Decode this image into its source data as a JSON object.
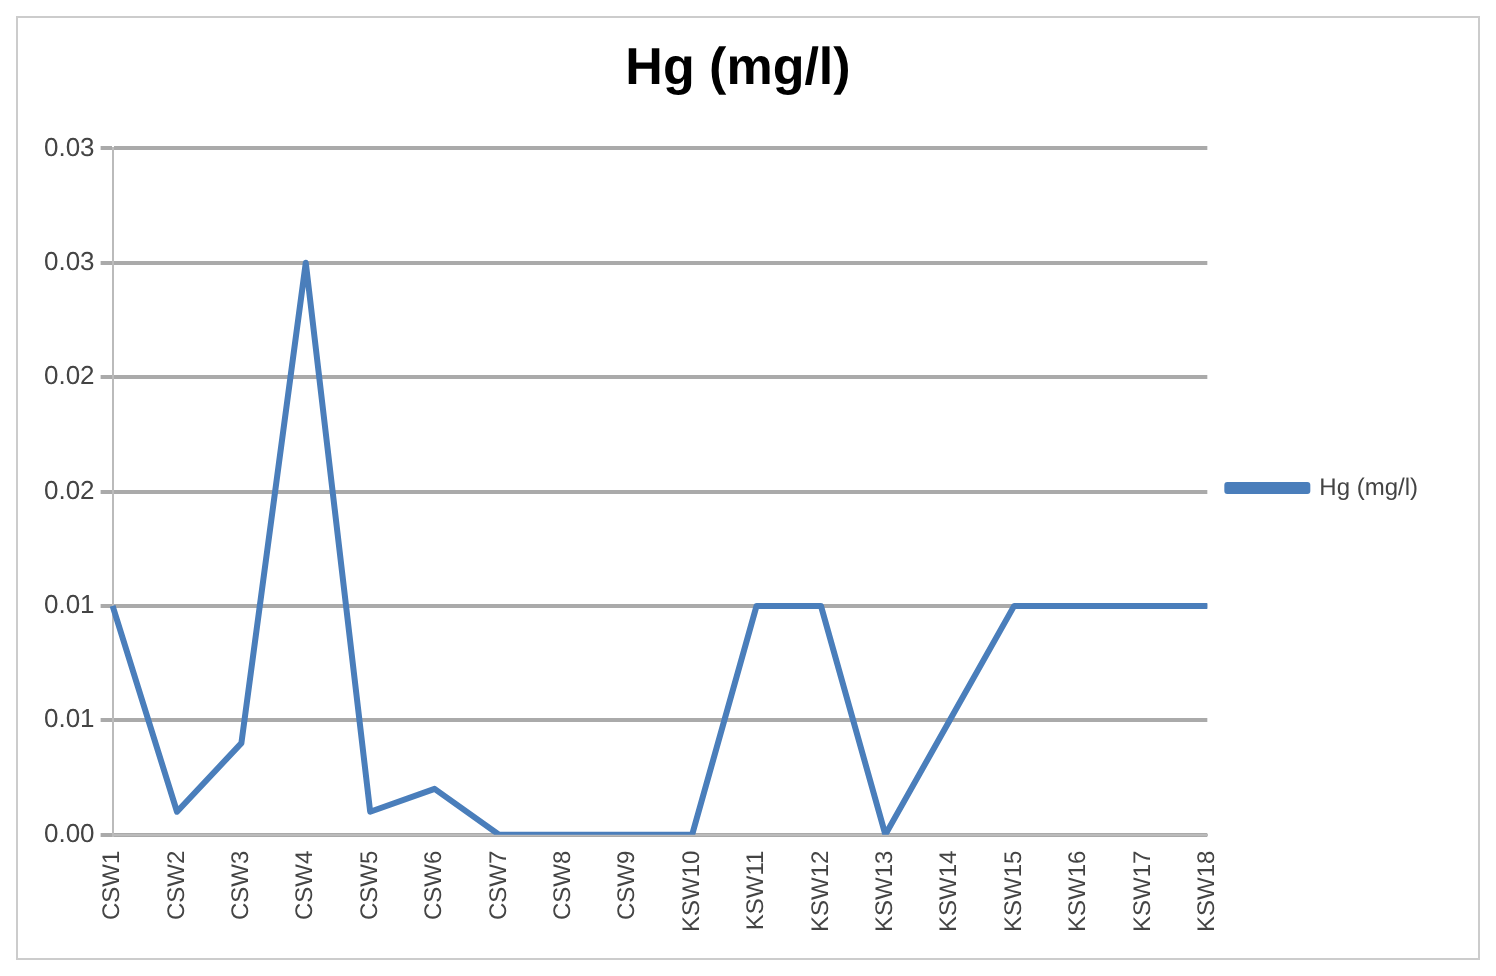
{
  "chart_data": {
    "type": "line",
    "title": "Hg (mg/l)",
    "categories": [
      "CSW1",
      "CSW2",
      "CSW3",
      "CSW4",
      "CSW5",
      "CSW6",
      "CSW7",
      "CSW8",
      "CSW9",
      "KSW10",
      "KSW11",
      "KSW12",
      "KSW13",
      "KSW14",
      "KSW15",
      "KSW16",
      "KSW17",
      "KSW18"
    ],
    "series": [
      {
        "name": "Hg (mg/l)",
        "color": "#4a7ebb",
        "values": [
          0.01,
          0.001,
          0.004,
          0.025,
          0.001,
          0.002,
          0,
          0,
          0,
          0,
          0.01,
          0.01,
          0,
          0.005,
          0.01,
          0.01,
          0.01,
          0.01
        ]
      }
    ],
    "ylim": [
      0,
      0.03
    ],
    "yticks": [
      {
        "value": 0,
        "label": "0.00"
      },
      {
        "value": 0.005,
        "label": "0.01"
      },
      {
        "value": 0.01,
        "label": "0.01"
      },
      {
        "value": 0.015,
        "label": "0.02"
      },
      {
        "value": 0.02,
        "label": "0.02"
      },
      {
        "value": 0.025,
        "label": "0.03"
      },
      {
        "value": 0.03,
        "label": "0.03"
      }
    ],
    "grid": "y",
    "legend": "right",
    "marker": "none",
    "line_style": "solid"
  }
}
